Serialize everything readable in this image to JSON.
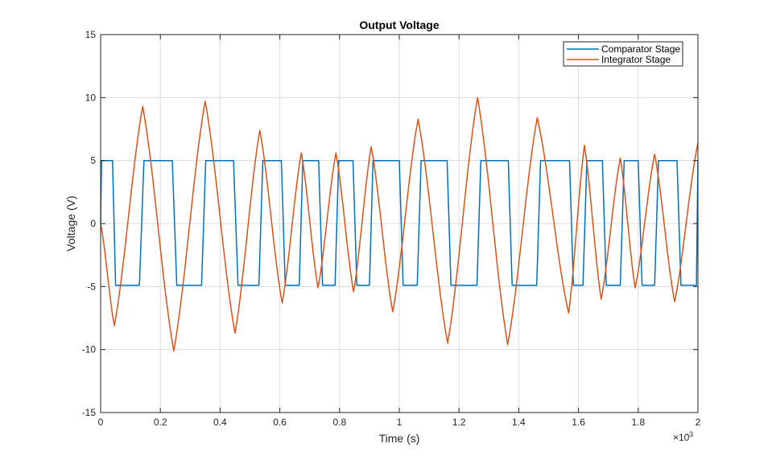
{
  "chart_data": {
    "type": "line",
    "title": "Output Voltage",
    "xlabel": "Time (s)",
    "ylabel": "Voltage (V)",
    "x_exponent_label": "×10",
    "x_exponent_power": "-3",
    "xlim": [
      0,
      2
    ],
    "ylim": [
      -15,
      15
    ],
    "x_ticks": [
      "0",
      "0.2",
      "0.4",
      "0.6",
      "0.8",
      "1",
      "1.2",
      "1.4",
      "1.6",
      "1.8",
      "2"
    ],
    "y_ticks": [
      "15",
      "10",
      "5",
      "0",
      "-5",
      "-10",
      "-15"
    ],
    "grid": true,
    "legend_position": "top-right",
    "series": [
      {
        "name": "Comparator Stage",
        "color": "#0072BD",
        "x": [
          0,
          0.003,
          0.005,
          0.04,
          0.05,
          0.13,
          0.145,
          0.24,
          0.255,
          0.338,
          0.352,
          0.445,
          0.46,
          0.53,
          0.543,
          0.605,
          0.618,
          0.665,
          0.677,
          0.73,
          0.743,
          0.785,
          0.797,
          0.845,
          0.858,
          0.9,
          0.912,
          1.0,
          1.013,
          1.06,
          1.073,
          1.16,
          1.173,
          1.26,
          1.273,
          1.365,
          1.378,
          1.46,
          1.473,
          1.57,
          1.583,
          1.615,
          1.628,
          1.68,
          1.693,
          1.74,
          1.753,
          1.8,
          1.813,
          1.855,
          1.868,
          1.93,
          1.943,
          1.995,
          2.0
        ],
        "y": [
          0,
          5,
          5,
          5,
          -4.9,
          -4.9,
          5,
          5,
          -4.9,
          -4.9,
          5,
          5,
          -4.9,
          -4.9,
          5,
          5,
          -4.9,
          -4.9,
          5,
          5,
          -4.9,
          -4.9,
          5,
          5,
          -4.9,
          -4.9,
          5,
          5,
          -4.9,
          -4.9,
          5,
          5,
          -4.9,
          -4.9,
          5,
          5,
          -4.9,
          -4.9,
          5,
          5,
          -4.9,
          -4.9,
          5,
          5,
          -4.9,
          -4.9,
          5,
          5,
          -4.9,
          -4.9,
          5,
          5,
          -4.9,
          -4.9,
          5
        ]
      },
      {
        "name": "Integrator Stage",
        "color": "#D95319",
        "x": [
          0,
          0.046,
          0.141,
          0.245,
          0.35,
          0.45,
          0.533,
          0.608,
          0.672,
          0.728,
          0.788,
          0.847,
          0.906,
          0.978,
          1.063,
          1.162,
          1.262,
          1.363,
          1.462,
          1.567,
          1.62,
          1.676,
          1.74,
          1.79,
          1.855,
          1.922,
          2.0
        ],
        "y": [
          0,
          -8.1,
          9.3,
          -10.1,
          9.7,
          -8.7,
          7.4,
          -6.3,
          5.6,
          -5.1,
          5.6,
          -5.4,
          6.1,
          -7.0,
          8.3,
          -9.5,
          10.0,
          -9.6,
          8.4,
          -7.1,
          6.2,
          -6.0,
          5.2,
          -5.1,
          5.5,
          -6.2,
          6.4
        ]
      }
    ]
  }
}
